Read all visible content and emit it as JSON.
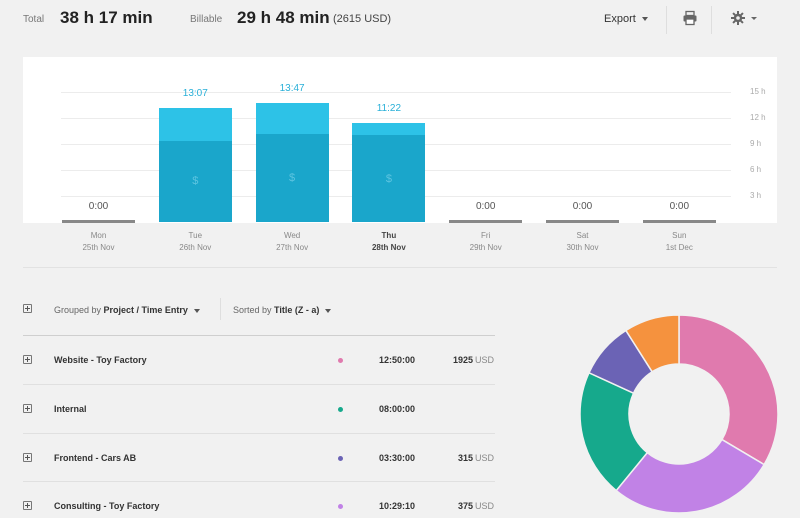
{
  "header": {
    "total_label": "Total",
    "total_value": "38 h 17 min",
    "billable_label": "Billable",
    "billable_value": "29 h 48 min",
    "billable_amount": "(2615 USD)",
    "export_label": "Export"
  },
  "chart_data": {
    "type": "bar",
    "categories": [
      "Mon",
      "Tue",
      "Wed",
      "Thu",
      "Fri",
      "Sat",
      "Sun"
    ],
    "dates": [
      "25th Nov",
      "26th Nov",
      "27th Nov",
      "28th Nov",
      "29th Nov",
      "30th Nov",
      "1st Dec"
    ],
    "current_day_index": 3,
    "series": [
      {
        "values": [
          0,
          9.35,
          10.1,
          10.0,
          0,
          0,
          0
        ],
        "color": "#1aa6cb"
      },
      {
        "values": [
          0,
          3.77,
          3.68,
          1.37,
          0,
          0,
          0
        ],
        "color": "#2dc2e7"
      }
    ],
    "totals": [
      0,
      13.12,
      13.78,
      11.37,
      0,
      0,
      0
    ],
    "total_labels": [
      "0:00",
      "13:07",
      "13:47",
      "11:22",
      "0:00",
      "0:00",
      "0:00"
    ],
    "billable_marker": "$",
    "y_ticks": [
      "15 h",
      "12 h",
      "9 h",
      "6 h",
      "3 h"
    ],
    "ylim": [
      0,
      15
    ],
    "grid": true
  },
  "controls": {
    "group_prefix": "Grouped by",
    "group_value": "Project / Time Entry",
    "sort_prefix": "Sorted by",
    "sort_value": "Title (Z - a)"
  },
  "rows": [
    {
      "title": "Website - Toy Factory",
      "color": "#e07aae",
      "duration": "12:50:00",
      "amount": "1925",
      "currency": "USD"
    },
    {
      "title": "Internal",
      "color": "#16a98c",
      "duration": "08:00:00",
      "amount": "",
      "currency": ""
    },
    {
      "title": "Frontend - Cars AB",
      "color": "#6b63b5",
      "duration": "03:30:00",
      "amount": "315",
      "currency": "USD"
    },
    {
      "title": "Consulting - Toy Factory",
      "color": "#c182e6",
      "duration": "10:29:10",
      "amount": "375",
      "currency": "USD"
    }
  ],
  "donut": [
    {
      "label": "Website - Toy Factory",
      "value": 12.833,
      "color": "#e07aae"
    },
    {
      "label": "Consulting - Toy Factory",
      "value": 10.486,
      "color": "#c182e6"
    },
    {
      "label": "Internal",
      "value": 8.0,
      "color": "#16a98c"
    },
    {
      "label": "Frontend - Cars AB",
      "value": 3.5,
      "color": "#6b63b5"
    },
    {
      "value": 3.45,
      "color": "#f5923e"
    }
  ]
}
